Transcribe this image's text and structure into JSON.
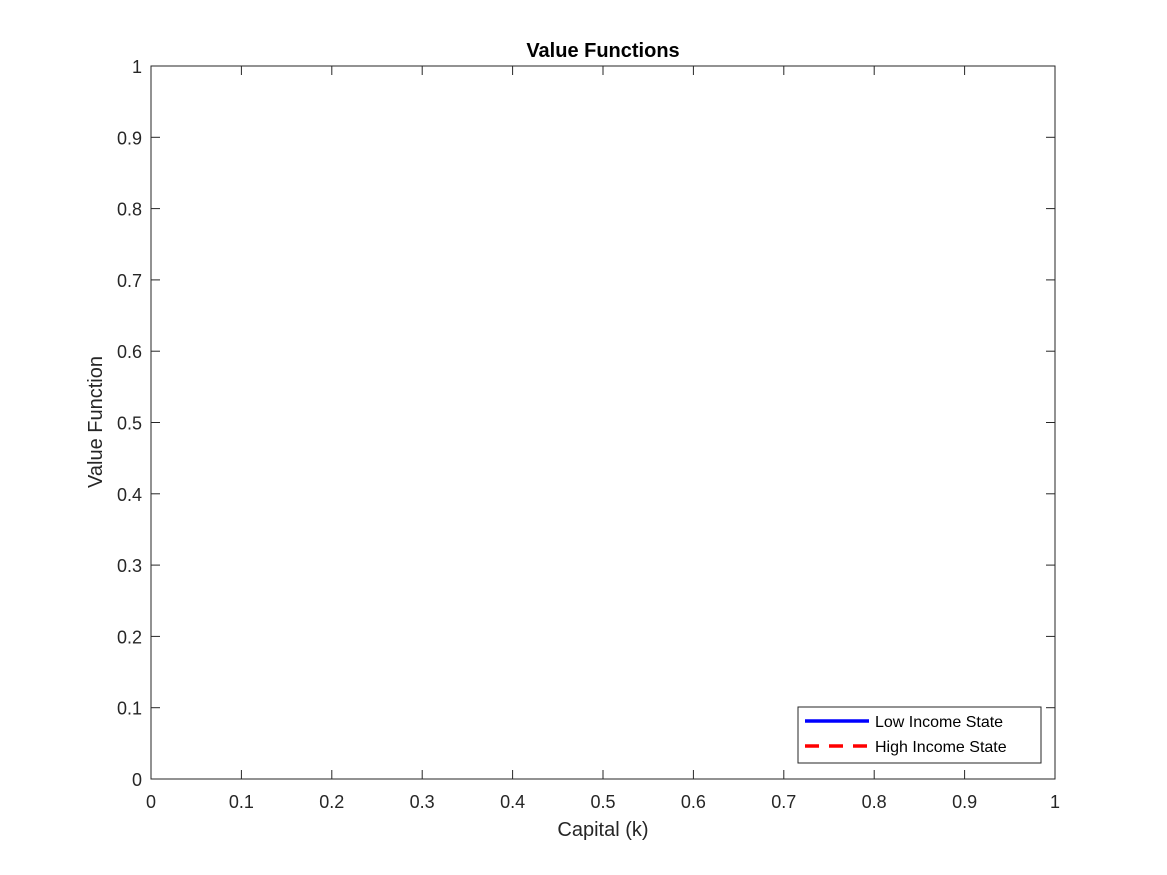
{
  "chart_data": {
    "type": "line",
    "title": "Value Functions",
    "xlabel": "Capital (k)",
    "ylabel": "Value Function",
    "xlim": [
      0,
      1
    ],
    "ylim": [
      0,
      1
    ],
    "x_ticks": [
      "0",
      "0.1",
      "0.2",
      "0.3",
      "0.4",
      "0.5",
      "0.6",
      "0.7",
      "0.8",
      "0.9",
      "1"
    ],
    "y_ticks": [
      "0",
      "0.1",
      "0.2",
      "0.3",
      "0.4",
      "0.5",
      "0.6",
      "0.7",
      "0.8",
      "0.9",
      "1"
    ],
    "grid": false,
    "legend_position": "bottom-right",
    "series": [
      {
        "name": "Low Income State",
        "color": "#0000ff",
        "line_style": "solid",
        "x": [],
        "y": []
      },
      {
        "name": "High Income State",
        "color": "#ff0000",
        "line_style": "dashed",
        "x": [],
        "y": []
      }
    ]
  }
}
